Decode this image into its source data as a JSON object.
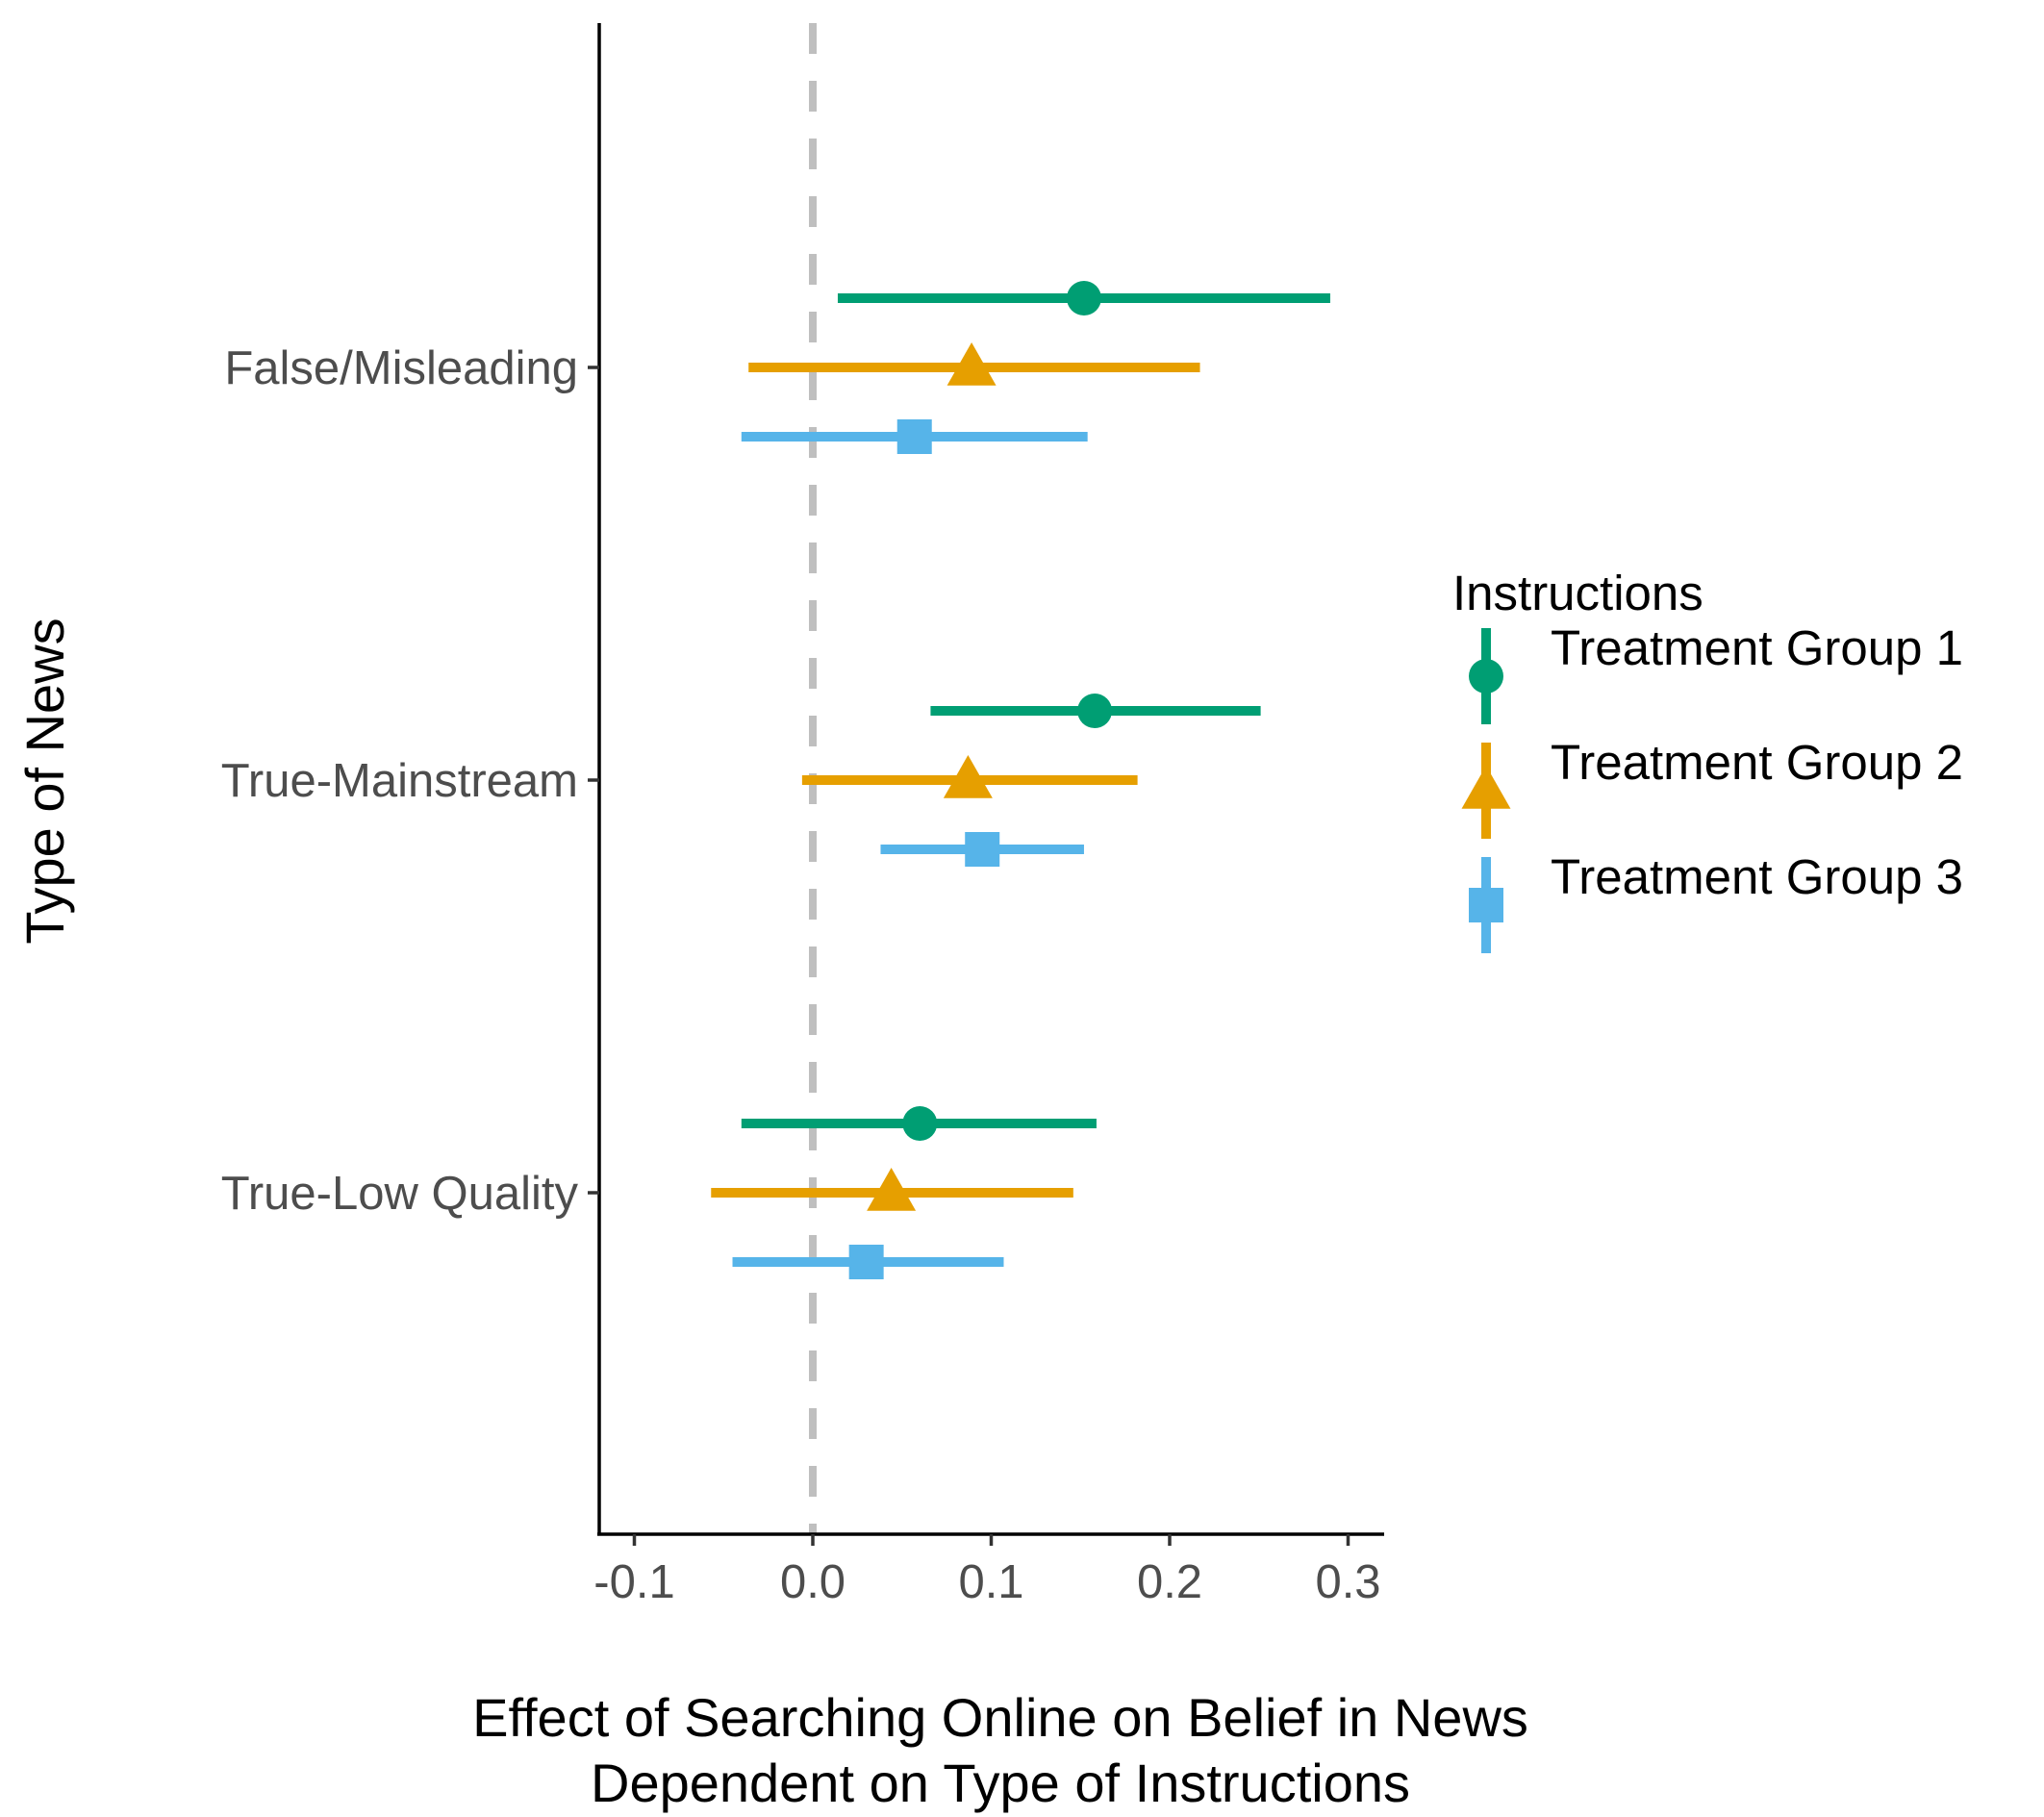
{
  "chart_data": {
    "type": "scatter",
    "subtype": "coefficient-plot",
    "xlabel_lines": [
      "Effect of Searching Online on Belief in News",
      "Dependent on Type of Instructions"
    ],
    "ylabel": "Type of News",
    "xlim": [
      -0.12,
      0.32
    ],
    "x_ticks": [
      -0.1,
      0.0,
      0.1,
      0.2,
      0.3
    ],
    "x_tick_labels": [
      "-0.1",
      "0.0",
      "0.1",
      "0.2",
      "0.3"
    ],
    "reference_line": {
      "x": 0.0,
      "style": "dashed",
      "color": "#bfbfbf"
    },
    "categories": [
      "False/Misleading",
      "True-Mainstream",
      "True-Low Quality"
    ],
    "grid": false,
    "legend": {
      "title": "Instructions",
      "placement": "right"
    },
    "series": [
      {
        "name": "Treatment Group 1",
        "color": "#009E73",
        "shape": "circle",
        "points": [
          {
            "category": "False/Misleading",
            "estimate": 0.152,
            "ci_low": 0.014,
            "ci_high": 0.29
          },
          {
            "category": "True-Mainstream",
            "estimate": 0.158,
            "ci_low": 0.066,
            "ci_high": 0.251
          },
          {
            "category": "True-Low Quality",
            "estimate": 0.06,
            "ci_low": -0.04,
            "ci_high": 0.159
          }
        ]
      },
      {
        "name": "Treatment Group 2",
        "color": "#E69F00",
        "shape": "triangle",
        "points": [
          {
            "category": "False/Misleading",
            "estimate": 0.089,
            "ci_low": -0.036,
            "ci_high": 0.217
          },
          {
            "category": "True-Mainstream",
            "estimate": 0.087,
            "ci_low": -0.006,
            "ci_high": 0.182
          },
          {
            "category": "True-Low Quality",
            "estimate": 0.044,
            "ci_low": -0.057,
            "ci_high": 0.146
          }
        ]
      },
      {
        "name": "Treatment Group 3",
        "color": "#56B4E9",
        "shape": "square",
        "points": [
          {
            "category": "False/Misleading",
            "estimate": 0.057,
            "ci_low": -0.04,
            "ci_high": 0.154
          },
          {
            "category": "True-Mainstream",
            "estimate": 0.095,
            "ci_low": 0.038,
            "ci_high": 0.152
          },
          {
            "category": "True-Low Quality",
            "estimate": 0.03,
            "ci_low": -0.045,
            "ci_high": 0.107
          }
        ]
      }
    ]
  }
}
